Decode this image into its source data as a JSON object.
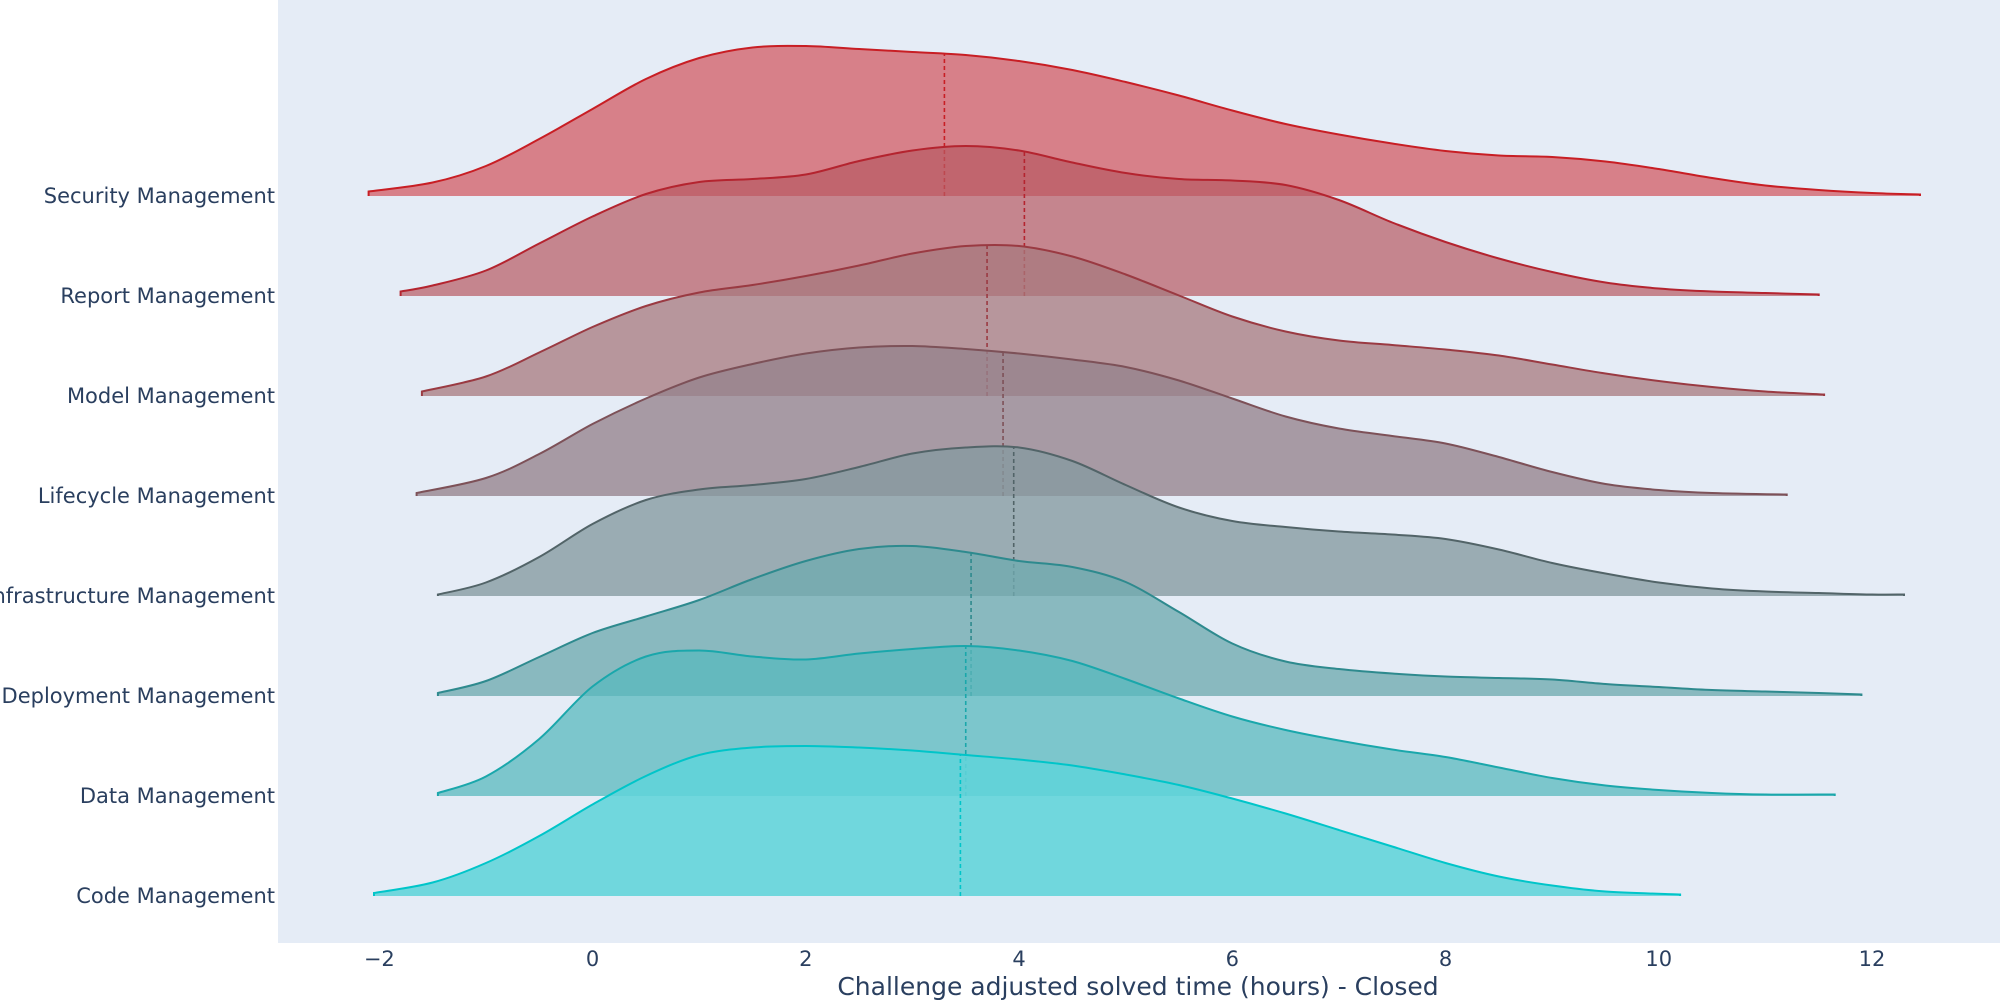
{
  "chart_data": {
    "type": "ridgeline",
    "xlabel": "Challenge adjusted solved time (hours) - Closed",
    "xlim": [
      -2.95,
      13.2
    ],
    "x_ticks": [
      -2,
      0,
      2,
      4,
      6,
      8,
      10,
      12
    ],
    "x_tick_labels": [
      "−2",
      "0",
      "2",
      "4",
      "6",
      "8",
      "10",
      "12"
    ],
    "grid": false,
    "categories_top_to_bottom": [
      "Security Management",
      "Report Management",
      "Model Management",
      "Lifecycle Management",
      "Infrastructure Management",
      "Deployment Management",
      "Data Management",
      "Code Management"
    ],
    "series": [
      {
        "name": "Security Management",
        "color": "#c81e24",
        "fill": "rgba(207,70,78,0.65)",
        "median": 3.3,
        "x": [
          -2.1,
          -1.5,
          -1.0,
          -0.5,
          0.0,
          0.5,
          1.0,
          1.5,
          2.0,
          2.5,
          3.0,
          3.5,
          4.0,
          4.5,
          5.0,
          5.5,
          6.0,
          6.5,
          7.0,
          7.5,
          8.0,
          8.5,
          9.0,
          9.5,
          10.0,
          10.5,
          11.0,
          11.5,
          12.0,
          12.45
        ],
        "density": [
          0.03,
          0.09,
          0.2,
          0.38,
          0.58,
          0.78,
          0.92,
          0.99,
          1.0,
          0.98,
          0.96,
          0.94,
          0.9,
          0.84,
          0.76,
          0.67,
          0.57,
          0.48,
          0.41,
          0.35,
          0.3,
          0.27,
          0.26,
          0.23,
          0.18,
          0.12,
          0.07,
          0.04,
          0.02,
          0.01
        ]
      },
      {
        "name": "Report Management",
        "color": "#b4242f",
        "fill": "rgba(184,90,98,0.70)",
        "median": 4.05,
        "x": [
          -1.8,
          -1.5,
          -1.0,
          -0.5,
          0.0,
          0.5,
          1.0,
          1.5,
          2.0,
          2.5,
          3.0,
          3.5,
          4.0,
          4.5,
          5.0,
          5.5,
          6.0,
          6.5,
          7.0,
          7.5,
          8.0,
          8.5,
          9.0,
          9.5,
          10.0,
          10.5,
          11.0,
          11.5
        ],
        "density": [
          0.03,
          0.07,
          0.17,
          0.35,
          0.53,
          0.68,
          0.76,
          0.78,
          0.81,
          0.9,
          0.97,
          1.0,
          0.97,
          0.89,
          0.82,
          0.78,
          0.77,
          0.74,
          0.64,
          0.49,
          0.36,
          0.25,
          0.16,
          0.09,
          0.05,
          0.03,
          0.02,
          0.01
        ]
      },
      {
        "name": "Model Management",
        "color": "#9a3a42",
        "fill": "rgba(167,121,126,0.75)",
        "median": 3.7,
        "x": [
          -1.6,
          -1.0,
          -0.5,
          0.0,
          0.5,
          1.0,
          1.5,
          2.0,
          2.5,
          3.0,
          3.5,
          4.0,
          4.5,
          5.0,
          5.5,
          6.0,
          6.5,
          7.0,
          7.5,
          8.0,
          8.5,
          9.0,
          9.5,
          10.0,
          10.5,
          11.0,
          11.55
        ],
        "density": [
          0.03,
          0.13,
          0.29,
          0.46,
          0.6,
          0.69,
          0.74,
          0.8,
          0.87,
          0.95,
          1.0,
          1.0,
          0.93,
          0.81,
          0.67,
          0.53,
          0.43,
          0.37,
          0.34,
          0.31,
          0.27,
          0.21,
          0.15,
          0.1,
          0.06,
          0.03,
          0.01
        ]
      },
      {
        "name": "Lifecycle Management",
        "color": "#7d5158",
        "fill": "rgba(150,131,141,0.78)",
        "median": 3.85,
        "x": [
          -1.65,
          -1.0,
          -0.5,
          0.0,
          0.5,
          1.0,
          1.5,
          2.0,
          2.5,
          3.0,
          3.5,
          4.0,
          4.5,
          5.0,
          5.5,
          6.0,
          6.5,
          7.0,
          7.5,
          8.0,
          8.5,
          9.0,
          9.5,
          10.0,
          10.5,
          11.2
        ],
        "density": [
          0.02,
          0.12,
          0.28,
          0.48,
          0.65,
          0.79,
          0.88,
          0.95,
          0.99,
          1.0,
          0.98,
          0.95,
          0.91,
          0.86,
          0.77,
          0.65,
          0.53,
          0.45,
          0.4,
          0.35,
          0.26,
          0.16,
          0.08,
          0.04,
          0.02,
          0.01
        ]
      },
      {
        "name": "Infrastructure Management",
        "color": "#526468",
        "fill": "rgba(133,154,160,0.78)",
        "median": 3.95,
        "x": [
          -1.45,
          -1.0,
          -0.5,
          0.0,
          0.5,
          1.0,
          1.5,
          2.0,
          2.5,
          3.0,
          3.5,
          4.0,
          4.5,
          5.0,
          5.5,
          6.0,
          6.5,
          7.0,
          7.5,
          8.0,
          8.5,
          9.0,
          9.5,
          10.0,
          10.5,
          11.0,
          11.5,
          12.0,
          12.3
        ],
        "density": [
          0.01,
          0.09,
          0.26,
          0.48,
          0.64,
          0.71,
          0.74,
          0.78,
          0.86,
          0.95,
          0.99,
          0.99,
          0.9,
          0.74,
          0.59,
          0.5,
          0.46,
          0.43,
          0.41,
          0.38,
          0.31,
          0.22,
          0.15,
          0.09,
          0.05,
          0.03,
          0.02,
          0.01,
          0.01
        ]
      },
      {
        "name": "Deployment Management",
        "color": "#2e8a8e",
        "fill": "rgba(112,170,175,0.78)",
        "median": 3.55,
        "x": [
          -1.45,
          -1.0,
          -0.5,
          0.0,
          0.5,
          1.0,
          1.5,
          2.0,
          2.5,
          3.0,
          3.5,
          4.0,
          4.5,
          5.0,
          5.5,
          6.0,
          6.5,
          7.0,
          7.5,
          8.0,
          8.5,
          9.0,
          9.5,
          10.0,
          10.5,
          11.0,
          11.5,
          11.9
        ],
        "density": [
          0.02,
          0.1,
          0.26,
          0.42,
          0.53,
          0.64,
          0.78,
          0.9,
          0.98,
          1.0,
          0.96,
          0.9,
          0.86,
          0.76,
          0.56,
          0.35,
          0.23,
          0.18,
          0.15,
          0.13,
          0.12,
          0.11,
          0.08,
          0.06,
          0.04,
          0.03,
          0.02,
          0.01
        ]
      },
      {
        "name": "Data Management",
        "color": "#1aa7ab",
        "fill": "rgba(88,185,189,0.75)",
        "median": 3.5,
        "x": [
          -1.45,
          -1.0,
          -0.5,
          0.0,
          0.5,
          1.0,
          1.5,
          2.0,
          2.5,
          3.0,
          3.5,
          4.0,
          4.5,
          5.0,
          5.5,
          6.0,
          6.5,
          7.0,
          7.5,
          8.0,
          8.5,
          9.0,
          9.5,
          10.0,
          10.5,
          11.0,
          11.65
        ],
        "density": [
          0.02,
          0.13,
          0.38,
          0.73,
          0.93,
          0.97,
          0.93,
          0.91,
          0.95,
          0.98,
          1.0,
          0.97,
          0.9,
          0.78,
          0.65,
          0.53,
          0.44,
          0.37,
          0.31,
          0.26,
          0.19,
          0.12,
          0.07,
          0.04,
          0.02,
          0.01,
          0.01
        ]
      },
      {
        "name": "Code Management",
        "color": "#00c5c9",
        "fill": "rgba(96,212,218,0.88)",
        "median": 3.45,
        "x": [
          -2.05,
          -1.5,
          -1.0,
          -0.5,
          0.0,
          0.5,
          1.0,
          1.5,
          2.0,
          2.5,
          3.0,
          3.5,
          4.0,
          4.5,
          5.0,
          5.5,
          6.0,
          6.5,
          7.0,
          7.5,
          8.0,
          8.5,
          9.0,
          9.5,
          10.2
        ],
        "density": [
          0.02,
          0.09,
          0.22,
          0.4,
          0.61,
          0.8,
          0.94,
          0.99,
          1.0,
          0.99,
          0.97,
          0.94,
          0.91,
          0.87,
          0.81,
          0.74,
          0.65,
          0.55,
          0.44,
          0.33,
          0.22,
          0.13,
          0.07,
          0.03,
          0.01
        ]
      }
    ]
  }
}
